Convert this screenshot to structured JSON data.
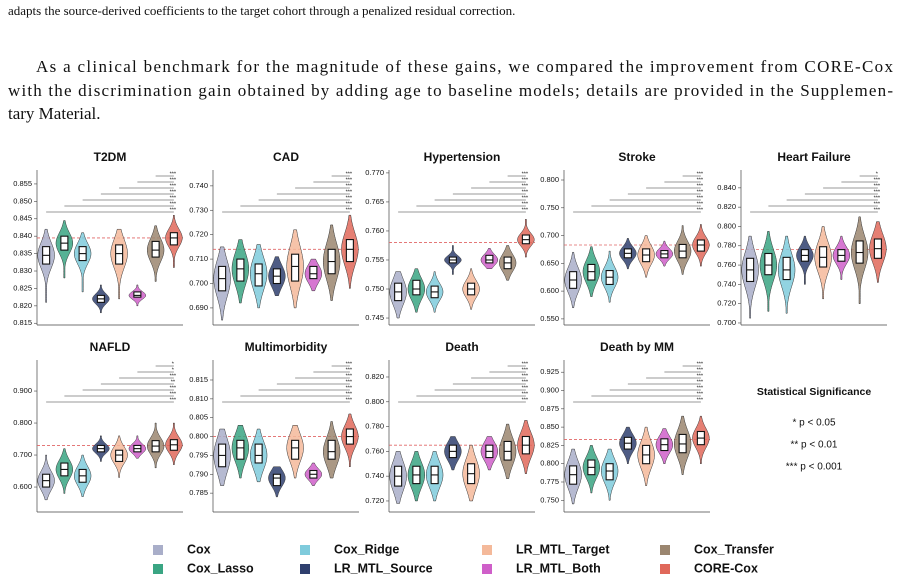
{
  "text": {
    "fragment": "adapts the source-derived coefficients to the target cohort through a penalized residual correction.",
    "paragraph": [
      "As a clinical benchmark for the magnitude of these gains, we compared the improvement from CORE-Cox",
      "with the discrimination gain obtained by adding age to baseline models; details are provided in the Supplemen-",
      "tary Material."
    ]
  },
  "legend": {
    "series": [
      {
        "name": "Cox",
        "color": "#a9aec9"
      },
      {
        "name": "Cox_Lasso",
        "color": "#3aa583"
      },
      {
        "name": "Cox_Ridge",
        "color": "#7fcbdc"
      },
      {
        "name": "LR_MTL_Source",
        "color": "#2f3f6e"
      },
      {
        "name": "LR_MTL_Target",
        "color": "#f4b99a"
      },
      {
        "name": "LR_MTL_Both",
        "color": "#cf5fc9"
      },
      {
        "name": "Cox_Transfer",
        "color": "#9b8670"
      },
      {
        "name": "CORE-Cox",
        "color": "#e0685a"
      }
    ]
  },
  "significance_legend": {
    "title": "Statistical Significance",
    "entries": [
      "* p < 0.05",
      "** p < 0.01",
      "*** p < 0.001"
    ]
  },
  "chart_data": [
    {
      "type": "violin",
      "title": "T2DM",
      "ylim": [
        0.8145,
        0.859
      ],
      "yticks": [
        0.815,
        {
          "value": 0.82,
          "label": "0.820"
        },
        0.825,
        {
          "value": 0.83,
          "label": "0.830"
        },
        0.835,
        {
          "value": 0.84,
          "label": "0.840"
        },
        0.845,
        {
          "value": 0.85,
          "label": "0.850"
        },
        0.855
      ],
      "reference": 0.8395,
      "significance": [
        "***",
        "***",
        "***",
        "***",
        "***",
        "***",
        "***"
      ],
      "violins": [
        {
          "min": 0.821,
          "q1": 0.832,
          "median": 0.8345,
          "q3": 0.837,
          "max": 0.842
        },
        {
          "min": 0.828,
          "q1": 0.836,
          "median": 0.838,
          "q3": 0.84,
          "max": 0.8445
        },
        {
          "min": 0.824,
          "q1": 0.833,
          "median": 0.835,
          "q3": 0.837,
          "max": 0.841
        },
        {
          "min": 0.818,
          "q1": 0.821,
          "median": 0.822,
          "q3": 0.823,
          "max": 0.826
        },
        {
          "min": 0.822,
          "q1": 0.832,
          "median": 0.835,
          "q3": 0.8375,
          "max": 0.842
        },
        {
          "min": 0.82,
          "q1": 0.8225,
          "median": 0.823,
          "q3": 0.824,
          "max": 0.826
        },
        {
          "min": 0.827,
          "q1": 0.834,
          "median": 0.836,
          "q3": 0.8385,
          "max": 0.843
        },
        {
          "min": 0.831,
          "q1": 0.8375,
          "median": 0.8395,
          "q3": 0.841,
          "max": 0.846
        }
      ]
    },
    {
      "type": "violin",
      "title": "CAD",
      "ylim": [
        0.683,
        0.7465
      ],
      "yticks": [
        {
          "value": 0.69,
          "label": "0.690"
        },
        {
          "value": 0.7,
          "label": "0.700"
        },
        {
          "value": 0.71,
          "label": "0.710"
        },
        {
          "value": 0.72,
          "label": "0.720"
        },
        {
          "value": 0.73,
          "label": "0.730"
        },
        {
          "value": 0.74,
          "label": "0.740"
        }
      ],
      "reference": 0.714,
      "significance": [
        "***",
        "***",
        "***",
        "***",
        "***",
        "***",
        "***"
      ],
      "violins": [
        {
          "min": 0.685,
          "q1": 0.697,
          "median": 0.702,
          "q3": 0.707,
          "max": 0.715
        },
        {
          "min": 0.692,
          "q1": 0.701,
          "median": 0.706,
          "q3": 0.71,
          "max": 0.718
        },
        {
          "min": 0.69,
          "q1": 0.699,
          "median": 0.704,
          "q3": 0.708,
          "max": 0.716
        },
        {
          "min": 0.695,
          "q1": 0.7,
          "median": 0.703,
          "q3": 0.706,
          "max": 0.711
        },
        {
          "min": 0.69,
          "q1": 0.701,
          "median": 0.707,
          "q3": 0.712,
          "max": 0.722
        },
        {
          "min": 0.697,
          "q1": 0.702,
          "median": 0.704,
          "q3": 0.707,
          "max": 0.71
        },
        {
          "min": 0.693,
          "q1": 0.704,
          "median": 0.709,
          "q3": 0.714,
          "max": 0.724
        },
        {
          "min": 0.698,
          "q1": 0.709,
          "median": 0.714,
          "q3": 0.718,
          "max": 0.728
        }
      ]
    },
    {
      "type": "violin",
      "title": "Hypertension",
      "ylim": [
        0.7438,
        0.7705
      ],
      "yticks": [
        0.745,
        {
          "value": 0.75,
          "label": "0.750"
        },
        0.755,
        {
          "value": 0.76,
          "label": "0.760"
        },
        0.765,
        {
          "value": 0.77,
          "label": "0.770"
        }
      ],
      "reference": 0.758,
      "significance": [
        "***",
        "***",
        "***",
        "***",
        "***",
        "***",
        "***"
      ],
      "violins": [
        {
          "min": 0.745,
          "q1": 0.748,
          "median": 0.7495,
          "q3": 0.751,
          "max": 0.753
        },
        {
          "min": 0.746,
          "q1": 0.749,
          "median": 0.75,
          "q3": 0.7515,
          "max": 0.7535
        },
        {
          "min": 0.746,
          "q1": 0.7485,
          "median": 0.7495,
          "q3": 0.7505,
          "max": 0.753
        },
        {
          "min": 0.7525,
          "q1": 0.7545,
          "median": 0.755,
          "q3": 0.7555,
          "max": 0.7575
        },
        {
          "min": 0.7465,
          "q1": 0.749,
          "median": 0.75,
          "q3": 0.751,
          "max": 0.7535
        },
        {
          "min": 0.7535,
          "q1": 0.7545,
          "median": 0.755,
          "q3": 0.7558,
          "max": 0.757
        },
        {
          "min": 0.7515,
          "q1": 0.7535,
          "median": 0.7545,
          "q3": 0.7555,
          "max": 0.7575
        },
        {
          "min": 0.7555,
          "q1": 0.7578,
          "median": 0.7585,
          "q3": 0.7593,
          "max": 0.762
        }
      ]
    },
    {
      "type": "violin",
      "title": "Stroke",
      "ylim": [
        0.539,
        0.818
      ],
      "yticks": [
        {
          "value": 0.55,
          "label": "0.550"
        },
        {
          "value": 0.6,
          "label": "0.600"
        },
        {
          "value": 0.65,
          "label": "0.650"
        },
        {
          "value": 0.7,
          "label": "0.700"
        },
        {
          "value": 0.75,
          "label": "0.750"
        },
        {
          "value": 0.8,
          "label": "0.800"
        }
      ],
      "reference": 0.683,
      "significance": [
        "***",
        "***",
        "***",
        "***",
        "***",
        "***",
        "***"
      ],
      "violins": [
        {
          "min": 0.57,
          "q1": 0.605,
          "median": 0.62,
          "q3": 0.635,
          "max": 0.67
        },
        {
          "min": 0.59,
          "q1": 0.62,
          "median": 0.635,
          "q3": 0.648,
          "max": 0.68
        },
        {
          "min": 0.58,
          "q1": 0.612,
          "median": 0.625,
          "q3": 0.637,
          "max": 0.672
        },
        {
          "min": 0.64,
          "q1": 0.66,
          "median": 0.668,
          "q3": 0.676,
          "max": 0.695
        },
        {
          "min": 0.625,
          "q1": 0.653,
          "median": 0.665,
          "q3": 0.676,
          "max": 0.7
        },
        {
          "min": 0.645,
          "q1": 0.66,
          "median": 0.667,
          "q3": 0.673,
          "max": 0.69
        },
        {
          "min": 0.63,
          "q1": 0.66,
          "median": 0.672,
          "q3": 0.684,
          "max": 0.718
        },
        {
          "min": 0.645,
          "q1": 0.672,
          "median": 0.683,
          "q3": 0.692,
          "max": 0.72
        }
      ]
    },
    {
      "type": "violin",
      "title": "Heart Failure",
      "ylim": [
        0.6979,
        0.8585
      ],
      "yticks": [
        {
          "value": 0.7,
          "label": "0.700"
        },
        {
          "value": 0.72,
          "label": "0.720"
        },
        {
          "value": 0.74,
          "label": "0.740"
        },
        {
          "value": 0.76,
          "label": "0.760"
        },
        {
          "value": 0.78,
          "label": "0.780"
        },
        {
          "value": 0.8,
          "label": "0.800"
        },
        {
          "value": 0.82,
          "label": "0.820"
        },
        {
          "value": 0.84,
          "label": "0.840"
        }
      ],
      "reference": 0.776,
      "significance": [
        "***",
        "***",
        "***",
        "***",
        "***",
        "***",
        "*"
      ],
      "violins": [
        {
          "min": 0.705,
          "q1": 0.743,
          "median": 0.755,
          "q3": 0.767,
          "max": 0.79
        },
        {
          "min": 0.712,
          "q1": 0.75,
          "median": 0.76,
          "q3": 0.772,
          "max": 0.795
        },
        {
          "min": 0.71,
          "q1": 0.745,
          "median": 0.755,
          "q3": 0.768,
          "max": 0.79
        },
        {
          "min": 0.74,
          "q1": 0.764,
          "median": 0.77,
          "q3": 0.776,
          "max": 0.79
        },
        {
          "min": 0.725,
          "q1": 0.758,
          "median": 0.768,
          "q3": 0.779,
          "max": 0.8
        },
        {
          "min": 0.745,
          "q1": 0.764,
          "median": 0.77,
          "q3": 0.776,
          "max": 0.79
        },
        {
          "min": 0.72,
          "q1": 0.762,
          "median": 0.773,
          "q3": 0.785,
          "max": 0.81
        },
        {
          "min": 0.742,
          "q1": 0.767,
          "median": 0.777,
          "q3": 0.787,
          "max": 0.805
        }
      ]
    },
    {
      "type": "violin",
      "title": "NAFLD",
      "ylim": [
        0.522,
        0.997
      ],
      "yticks": [
        {
          "value": 0.6,
          "label": "0.600"
        },
        {
          "value": 0.7,
          "label": "0.700"
        },
        {
          "value": 0.8,
          "label": "0.800"
        },
        {
          "value": 0.9,
          "label": "0.900"
        }
      ],
      "reference": 0.73,
      "significance": [
        "***",
        "***",
        "***",
        "**",
        "***",
        "*",
        "*"
      ],
      "violins": [
        {
          "min": 0.56,
          "q1": 0.6,
          "median": 0.62,
          "q3": 0.64,
          "max": 0.7
        },
        {
          "min": 0.58,
          "q1": 0.635,
          "median": 0.655,
          "q3": 0.675,
          "max": 0.72
        },
        {
          "min": 0.57,
          "q1": 0.615,
          "median": 0.635,
          "q3": 0.655,
          "max": 0.7
        },
        {
          "min": 0.68,
          "q1": 0.71,
          "median": 0.72,
          "q3": 0.73,
          "max": 0.76
        },
        {
          "min": 0.63,
          "q1": 0.68,
          "median": 0.7,
          "q3": 0.715,
          "max": 0.76
        },
        {
          "min": 0.69,
          "q1": 0.71,
          "median": 0.72,
          "q3": 0.73,
          "max": 0.76
        },
        {
          "min": 0.66,
          "q1": 0.71,
          "median": 0.728,
          "q3": 0.745,
          "max": 0.8
        },
        {
          "min": 0.67,
          "q1": 0.715,
          "median": 0.732,
          "q3": 0.748,
          "max": 0.8
        }
      ]
    },
    {
      "type": "violin",
      "title": "Multimorbidity",
      "ylim": [
        0.78,
        0.8203
      ],
      "yticks": [
        0.785,
        {
          "value": 0.79,
          "label": "0.790"
        },
        0.795,
        {
          "value": 0.8,
          "label": "0.800"
        },
        0.805,
        {
          "value": 0.81,
          "label": "0.810"
        },
        0.815
      ],
      "reference": 0.8,
      "significance": [
        "***",
        "***",
        "***",
        "***",
        "***",
        "***",
        "***"
      ],
      "violins": [
        {
          "min": 0.787,
          "q1": 0.792,
          "median": 0.795,
          "q3": 0.798,
          "max": 0.802
        },
        {
          "min": 0.789,
          "q1": 0.794,
          "median": 0.797,
          "q3": 0.799,
          "max": 0.803
        },
        {
          "min": 0.788,
          "q1": 0.793,
          "median": 0.795,
          "q3": 0.798,
          "max": 0.802
        },
        {
          "min": 0.784,
          "q1": 0.787,
          "median": 0.789,
          "q3": 0.79,
          "max": 0.792
        },
        {
          "min": 0.789,
          "q1": 0.794,
          "median": 0.797,
          "q3": 0.799,
          "max": 0.803
        },
        {
          "min": 0.787,
          "q1": 0.789,
          "median": 0.79,
          "q3": 0.791,
          "max": 0.793
        },
        {
          "min": 0.789,
          "q1": 0.794,
          "median": 0.796,
          "q3": 0.799,
          "max": 0.804
        },
        {
          "min": 0.792,
          "q1": 0.798,
          "median": 0.8,
          "q3": 0.802,
          "max": 0.806
        }
      ]
    },
    {
      "type": "violin",
      "title": "Death",
      "ylim": [
        0.7111,
        0.8337
      ],
      "yticks": [
        {
          "value": 0.72,
          "label": "0.720"
        },
        {
          "value": 0.74,
          "label": "0.740"
        },
        {
          "value": 0.76,
          "label": "0.760"
        },
        {
          "value": 0.78,
          "label": "0.780"
        },
        {
          "value": 0.8,
          "label": "0.800"
        },
        {
          "value": 0.82,
          "label": "0.820"
        }
      ],
      "reference": 0.765,
      "significance": [
        "***",
        "***",
        "***",
        "***",
        "***",
        "***",
        "***"
      ],
      "violins": [
        {
          "min": 0.718,
          "q1": 0.732,
          "median": 0.74,
          "q3": 0.748,
          "max": 0.76
        },
        {
          "min": 0.72,
          "q1": 0.734,
          "median": 0.741,
          "q3": 0.748,
          "max": 0.76
        },
        {
          "min": 0.72,
          "q1": 0.734,
          "median": 0.741,
          "q3": 0.748,
          "max": 0.76
        },
        {
          "min": 0.745,
          "q1": 0.755,
          "median": 0.76,
          "q3": 0.765,
          "max": 0.772
        },
        {
          "min": 0.72,
          "q1": 0.734,
          "median": 0.742,
          "q3": 0.75,
          "max": 0.765
        },
        {
          "min": 0.745,
          "q1": 0.755,
          "median": 0.76,
          "q3": 0.765,
          "max": 0.772
        },
        {
          "min": 0.738,
          "q1": 0.753,
          "median": 0.76,
          "q3": 0.768,
          "max": 0.782
        },
        {
          "min": 0.742,
          "q1": 0.758,
          "median": 0.765,
          "q3": 0.772,
          "max": 0.785
        }
      ]
    },
    {
      "type": "violin",
      "title": "Death by MM",
      "ylim": [
        0.734,
        0.9417
      ],
      "yticks": [
        {
          "value": 0.75,
          "label": "0.750"
        },
        0.775,
        {
          "value": 0.8,
          "label": "0.800"
        },
        0.825,
        {
          "value": 0.85,
          "label": "0.850"
        },
        0.875,
        {
          "value": 0.9,
          "label": "0.900"
        },
        0.925
      ],
      "reference": 0.833,
      "significance": [
        "***",
        "***",
        "***",
        "***",
        "***",
        "***",
        "***"
      ],
      "violins": [
        {
          "min": 0.745,
          "q1": 0.772,
          "median": 0.785,
          "q3": 0.797,
          "max": 0.82
        },
        {
          "min": 0.76,
          "q1": 0.785,
          "median": 0.795,
          "q3": 0.805,
          "max": 0.825
        },
        {
          "min": 0.75,
          "q1": 0.778,
          "median": 0.79,
          "q3": 0.8,
          "max": 0.82
        },
        {
          "min": 0.8,
          "q1": 0.82,
          "median": 0.828,
          "q3": 0.836,
          "max": 0.85
        },
        {
          "min": 0.77,
          "q1": 0.8,
          "median": 0.812,
          "q3": 0.825,
          "max": 0.85
        },
        {
          "min": 0.8,
          "q1": 0.818,
          "median": 0.826,
          "q3": 0.834,
          "max": 0.848
        },
        {
          "min": 0.785,
          "q1": 0.815,
          "median": 0.827,
          "q3": 0.84,
          "max": 0.865
        },
        {
          "min": 0.8,
          "q1": 0.826,
          "median": 0.835,
          "q3": 0.844,
          "max": 0.865
        }
      ]
    }
  ]
}
